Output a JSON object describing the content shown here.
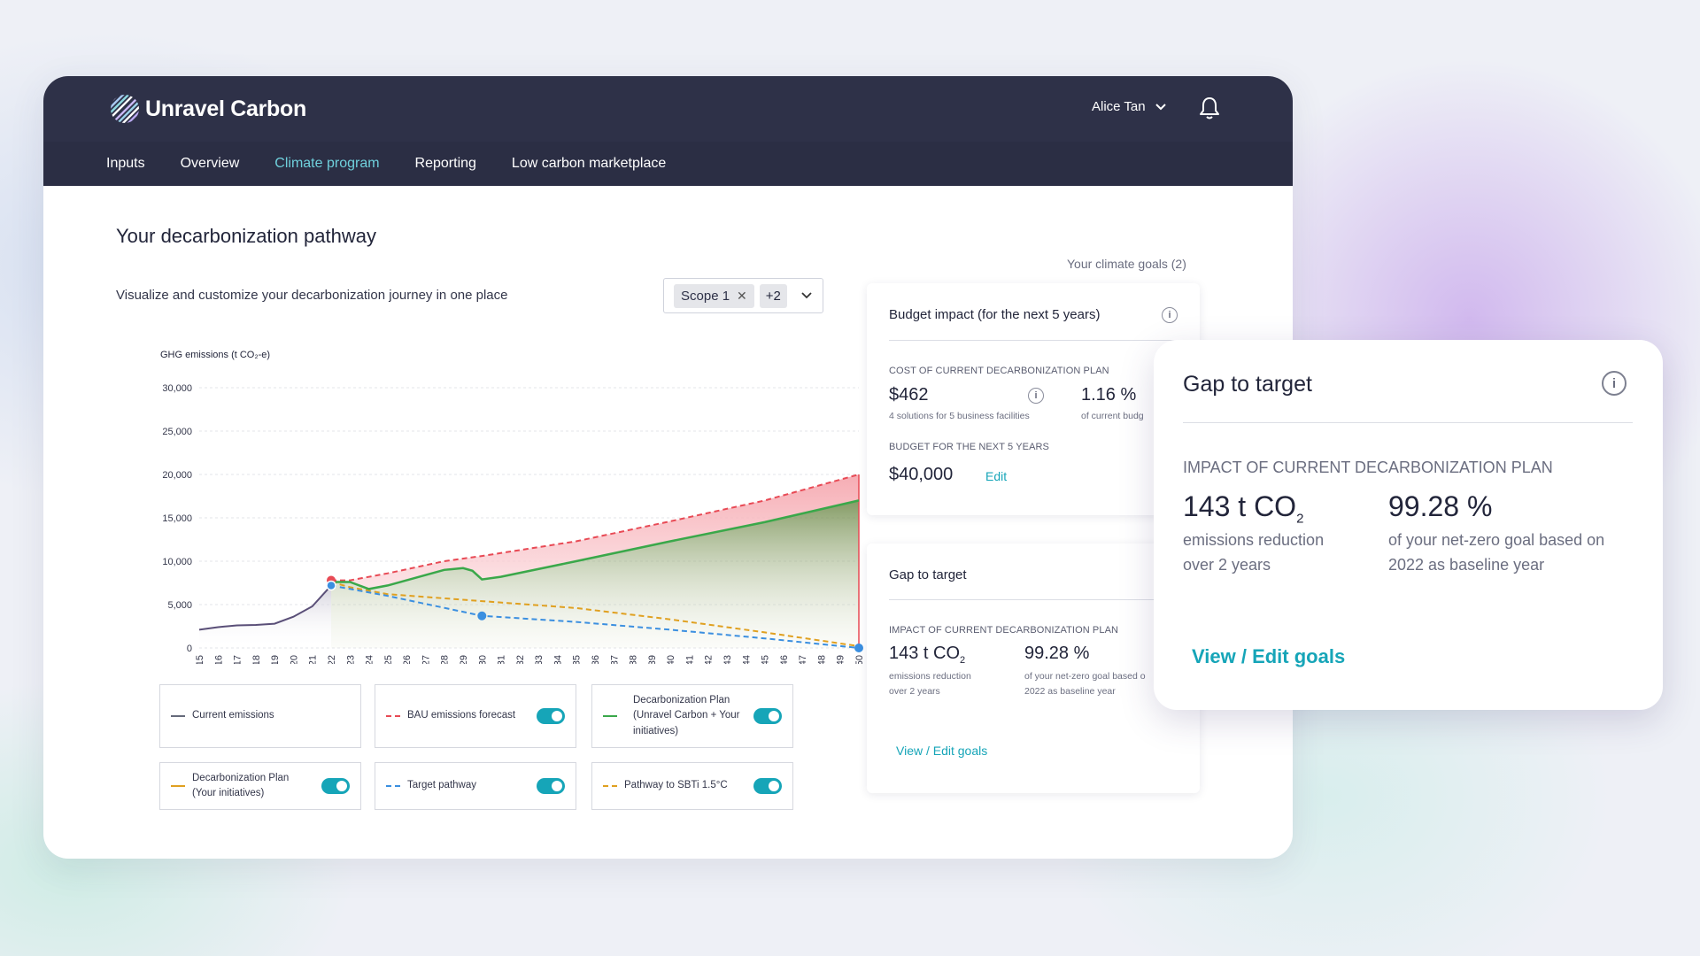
{
  "app": {
    "brand": "Unravel Carbon",
    "user_name": "Alice Tan"
  },
  "nav": {
    "items": [
      {
        "label": "Inputs"
      },
      {
        "label": "Overview"
      },
      {
        "label": "Climate program",
        "active": true
      },
      {
        "label": "Reporting"
      },
      {
        "label": "Low carbon marketplace"
      }
    ]
  },
  "page": {
    "title": "Your decarbonization pathway",
    "subtitle": "Visualize and customize your decarbonization journey in one place",
    "scope_chip": "Scope 1",
    "scope_more": "+2",
    "goals_link": "Your climate goals (2)"
  },
  "chart_data": {
    "type": "area",
    "ylabel": "GHG emissions (t CO₂-e)",
    "ylim": [
      0,
      30000
    ],
    "yticks": [
      0,
      5000,
      10000,
      15000,
      20000,
      25000,
      30000
    ],
    "ytick_labels": [
      "0",
      "5,000",
      "10,000",
      "15,000",
      "20,000",
      "25,000",
      "30,000"
    ],
    "x": [
      2015,
      2016,
      2017,
      2018,
      2019,
      2020,
      2021,
      2022,
      2023,
      2024,
      2025,
      2026,
      2027,
      2028,
      2029,
      2030,
      2031,
      2032,
      2033,
      2034,
      2035,
      2036,
      2037,
      2038,
      2039,
      2040,
      2041,
      2042,
      2043,
      2044,
      2045,
      2046,
      2047,
      2048,
      2049,
      2050
    ],
    "series": [
      {
        "name": "Current emissions",
        "color": "#5a4f78",
        "style": "solid",
        "points": [
          [
            2015,
            2100
          ],
          [
            2016,
            2400
          ],
          [
            2017,
            2600
          ],
          [
            2018,
            2650
          ],
          [
            2019,
            2800
          ],
          [
            2020,
            3600
          ],
          [
            2021,
            4800
          ],
          [
            2022,
            7200
          ]
        ]
      },
      {
        "name": "BAU emissions forecast",
        "color": "#e84a55",
        "style": "dashed",
        "points": [
          [
            2022,
            7800
          ],
          [
            2023,
            7800
          ],
          [
            2025,
            8600
          ],
          [
            2028,
            10000
          ],
          [
            2030,
            10600
          ],
          [
            2035,
            12300
          ],
          [
            2040,
            14600
          ],
          [
            2045,
            17000
          ],
          [
            2050,
            20000
          ]
        ]
      },
      {
        "name": "Decarbonization Plan (Unravel Carbon + Your initiatives)",
        "color": "#3aa84a",
        "style": "solid",
        "points": [
          [
            2022,
            7600
          ],
          [
            2023,
            7600
          ],
          [
            2024,
            6800
          ],
          [
            2025,
            7200
          ],
          [
            2027,
            8400
          ],
          [
            2028,
            9000
          ],
          [
            2029,
            9200
          ],
          [
            2029.5,
            8900
          ],
          [
            2030,
            7900
          ],
          [
            2031,
            8200
          ],
          [
            2035,
            10000
          ],
          [
            2040,
            12300
          ],
          [
            2045,
            14500
          ],
          [
            2050,
            17000
          ]
        ]
      },
      {
        "name": "Decarbonization Plan (Your initiatives)",
        "color": "#e0a020",
        "style": "dashed",
        "points": [
          [
            2022,
            7600
          ],
          [
            2023,
            7000
          ],
          [
            2025,
            6200
          ],
          [
            2030,
            5400
          ],
          [
            2035,
            4600
          ],
          [
            2040,
            3300
          ],
          [
            2045,
            1800
          ],
          [
            2050,
            200
          ]
        ]
      },
      {
        "name": "Target pathway",
        "color": "#3b8fe0",
        "style": "dashed",
        "points": [
          [
            2022,
            7200
          ],
          [
            2025,
            6000
          ],
          [
            2030,
            3700
          ],
          [
            2035,
            3000
          ],
          [
            2040,
            2100
          ],
          [
            2045,
            1100
          ],
          [
            2050,
            0
          ]
        ]
      },
      {
        "name": "Pathway to SBTi 1.5°C",
        "color": "#e0a020",
        "style": "dashed"
      }
    ]
  },
  "legend": [
    {
      "label": "Current emissions",
      "toggle": false,
      "color": "#666a7a",
      "dash": false
    },
    {
      "label": "BAU emissions forecast",
      "toggle": true,
      "color": "#e84a55",
      "dash": true
    },
    {
      "label": "Decarbonization Plan (Unravel Carbon + Your initiatives)",
      "toggle": true,
      "color": "#3aa84a",
      "dash": false
    },
    {
      "label": "Decarbonization Plan (Your initiatives)",
      "toggle": true,
      "color": "#e0a020",
      "dash": false
    },
    {
      "label": "Target pathway",
      "toggle": true,
      "color": "#3b8fe0",
      "dash": true
    },
    {
      "label": "Pathway to SBTi 1.5°C",
      "toggle": true,
      "color": "#e0a020",
      "dash": true
    }
  ],
  "budget_card": {
    "title": "Budget impact (for the next 5 years)",
    "cost_caption": "COST OF CURRENT DECARBONIZATION PLAN",
    "cost_value": "$462",
    "cost_note": "4 solutions for 5 business facilities",
    "pct_value": "1.16 %",
    "pct_note": "of current budg",
    "budget_caption": "BUDGET FOR THE NEXT 5 YEARS",
    "budget_value": "$40,000",
    "edit_label": "Edit"
  },
  "gap_card": {
    "title": "Gap to target",
    "caption": "IMPACT OF CURRENT DECARBONIZATION PLAN",
    "reduction_value": "143 t CO",
    "reduction_sub": "2",
    "reduction_note_1": "emissions reduction",
    "reduction_note_2": "over 2 years",
    "pct_value": "99.28 %",
    "pct_note_1": "of your net-zero goal based o",
    "pct_note_2": "2022 as baseline year",
    "link": "View / Edit goals"
  },
  "float_card": {
    "title": "Gap to target",
    "caption": "IMPACT OF CURRENT DECARBONIZATION PLAN",
    "reduction_value": "143 t CO",
    "reduction_sub": "2",
    "reduction_note_1": "emissions reduction",
    "reduction_note_2": "over 2 years",
    "pct_value": "99.28 %",
    "pct_note_1": "of your net-zero goal based on",
    "pct_note_2": "2022 as baseline year",
    "link": "View / Edit goals"
  }
}
